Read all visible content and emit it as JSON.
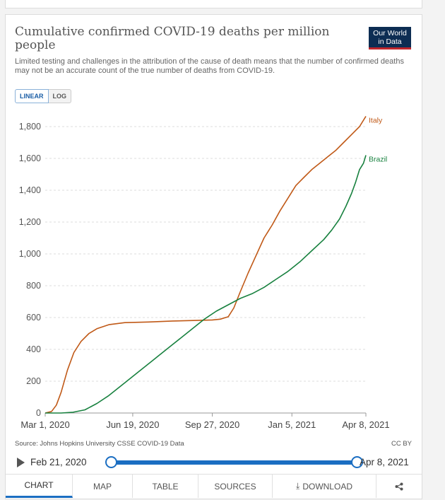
{
  "chart": {
    "title": "Cumulative confirmed COVID-19 deaths per million people",
    "subtitle": "Limited testing and challenges in the attribution of the cause of death means that the number of confirmed deaths may not be an accurate count of the true number of deaths from COVID-19.",
    "logo": {
      "line1": "Our World",
      "line2": "in Data"
    },
    "scale_toggle": {
      "linear": "LINEAR",
      "log": "LOG",
      "selected": "LINEAR"
    },
    "source": "Source: Johns Hopkins University CSSE COVID-19 Data",
    "license": "CC BY"
  },
  "timeline": {
    "start_label": "Feb 21, 2020",
    "end_label": "Apr 8, 2021"
  },
  "tabs": [
    "CHART",
    "MAP",
    "TABLE",
    "SOURCES",
    "DOWNLOAD"
  ],
  "icons": {
    "play": "play-icon",
    "download": "download-icon",
    "share": "share-icon"
  },
  "colors": {
    "italy": "#c05917",
    "brazil": "#18813f",
    "accent": "#1b6ec2"
  },
  "chart_data": {
    "type": "line",
    "title": "Cumulative confirmed COVID-19 deaths per million people",
    "xlabel": "",
    "ylabel": "",
    "x_unit": "days since Mar 1, 2020",
    "xlim": [
      0,
      403
    ],
    "ylim": [
      0,
      1800
    ],
    "yticks": [
      0,
      200,
      400,
      600,
      800,
      1000,
      1200,
      1400,
      1600,
      1800
    ],
    "yticklabels": [
      "0",
      "200",
      "400",
      "600",
      "800",
      "1,000",
      "1,200",
      "1,400",
      "1,600",
      "1,800"
    ],
    "xticks": [
      0,
      110,
      210,
      310,
      403
    ],
    "xticklabels": [
      "Mar 1, 2020",
      "Jun 19, 2020",
      "Sep 27, 2020",
      "Jan 5, 2021",
      "Apr 8, 2021"
    ],
    "grid": true,
    "series": [
      {
        "name": "Italy",
        "color": "#c05917",
        "x": [
          0,
          8,
          14,
          20,
          28,
          36,
          45,
          55,
          65,
          80,
          100,
          130,
          160,
          190,
          210,
          220,
          230,
          237,
          245,
          255,
          265,
          275,
          285,
          295,
          305,
          315,
          325,
          335,
          345,
          355,
          365,
          375,
          385,
          395,
          403
        ],
        "y": [
          0,
          10,
          50,
          130,
          270,
          380,
          450,
          500,
          530,
          555,
          568,
          572,
          578,
          582,
          585,
          590,
          605,
          660,
          760,
          880,
          990,
          1100,
          1180,
          1270,
          1350,
          1430,
          1480,
          1530,
          1570,
          1610,
          1650,
          1700,
          1750,
          1800,
          1865
        ]
      },
      {
        "name": "Brazil",
        "color": "#18813f",
        "x": [
          0,
          20,
          35,
          50,
          65,
          80,
          100,
          120,
          140,
          160,
          180,
          200,
          215,
          230,
          245,
          260,
          275,
          290,
          305,
          320,
          335,
          350,
          360,
          370,
          378,
          385,
          390,
          395,
          400,
          403
        ],
        "y": [
          0,
          0,
          5,
          20,
          60,
          110,
          190,
          270,
          350,
          430,
          510,
          590,
          640,
          680,
          720,
          750,
          790,
          840,
          890,
          950,
          1020,
          1090,
          1150,
          1220,
          1300,
          1380,
          1450,
          1530,
          1570,
          1620
        ]
      }
    ]
  }
}
